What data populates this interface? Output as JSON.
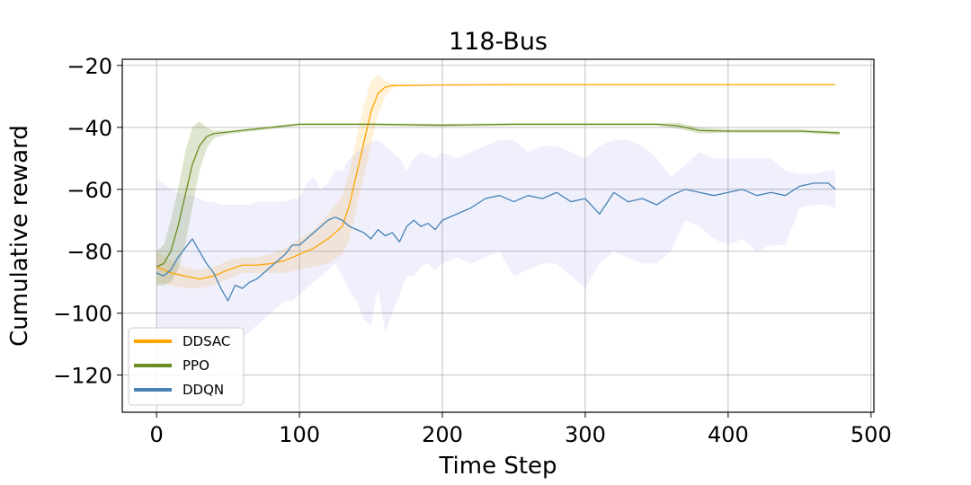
{
  "chart_data": {
    "type": "line",
    "title": "118-Bus",
    "xlabel": "Time Step",
    "ylabel": "Cumulative reward",
    "xlim": [
      -24,
      502
    ],
    "ylim": [
      -132,
      -18
    ],
    "xticks": [
      0,
      100,
      200,
      300,
      400,
      500
    ],
    "yticks": [
      -20,
      -40,
      -60,
      -80,
      -100,
      -120
    ],
    "xtick_labels": [
      "0",
      "100",
      "200",
      "300",
      "400",
      "500"
    ],
    "ytick_labels": [
      "−20",
      "−40",
      "−60",
      "−80",
      "−100",
      "−120"
    ],
    "grid": true,
    "legend_position": "lower-left",
    "series": [
      {
        "name": "DDSAC",
        "color": "#ffa500",
        "x": [
          0,
          10,
          20,
          30,
          40,
          50,
          60,
          70,
          80,
          90,
          100,
          110,
          120,
          130,
          135,
          140,
          145,
          150,
          155,
          160,
          165,
          170,
          200,
          250,
          300,
          350,
          400,
          450,
          475
        ],
        "y": [
          -85,
          -87,
          -88,
          -89,
          -88,
          -86,
          -84.5,
          -84.5,
          -84,
          -83,
          -81,
          -79,
          -76,
          -72,
          -65,
          -55,
          -45,
          -35,
          -29,
          -27,
          -26.5,
          -26.5,
          -26.3,
          -26.2,
          -26.2,
          -26.2,
          -26.2,
          -26.2,
          -26.2
        ],
        "band_upper": [
          -80,
          -83,
          -85,
          -86,
          -85,
          -83,
          -82,
          -82,
          -81,
          -79,
          -76,
          -73,
          -68,
          -62,
          -54,
          -43,
          -33,
          -25,
          -23,
          -25,
          -26,
          -26.2,
          -26.1,
          -26.0,
          -26.0,
          -26.0,
          -26.0,
          -26.0,
          -26.0
        ],
        "band_lower": [
          -90,
          -91,
          -92,
          -92,
          -91,
          -89,
          -87,
          -87,
          -87,
          -87,
          -86,
          -85,
          -84,
          -81,
          -76,
          -66,
          -56,
          -46,
          -36,
          -30,
          -27.5,
          -26.8,
          -26.5,
          -26.4,
          -26.4,
          -26.4,
          -26.4,
          -26.4,
          -26.4
        ]
      },
      {
        "name": "PPO",
        "color": "#6b8e23",
        "x": [
          0,
          5,
          10,
          15,
          20,
          25,
          30,
          35,
          40,
          50,
          60,
          80,
          100,
          120,
          150,
          200,
          250,
          300,
          350,
          365,
          380,
          400,
          450,
          478
        ],
        "y": [
          -85,
          -84,
          -80,
          -72,
          -62,
          -52,
          -46,
          -43,
          -42,
          -41.5,
          -41,
          -40,
          -39,
          -39,
          -39,
          -39.3,
          -39,
          -39,
          -39,
          -39.5,
          -41,
          -41.2,
          -41.2,
          -41.8
        ],
        "band_upper": [
          -80,
          -78,
          -70,
          -60,
          -48,
          -40,
          -38,
          -40,
          -41,
          -41,
          -40.5,
          -39.5,
          -38.6,
          -38.6,
          -38.6,
          -38.8,
          -38.6,
          -38.6,
          -38.6,
          -38.5,
          -40,
          -40.6,
          -40.6,
          -41.2
        ],
        "band_lower": [
          -91,
          -91,
          -90,
          -86,
          -78,
          -66,
          -54,
          -47,
          -43.5,
          -42.2,
          -41.6,
          -40.6,
          -39.4,
          -39.4,
          -39.4,
          -39.8,
          -39.4,
          -39.4,
          -39.4,
          -40.5,
          -42,
          -41.8,
          -41.8,
          -42.5
        ]
      },
      {
        "name": "DDQN",
        "color": "#4682b4",
        "x": [
          0,
          5,
          10,
          15,
          20,
          25,
          30,
          35,
          40,
          45,
          50,
          55,
          60,
          65,
          70,
          75,
          80,
          85,
          90,
          95,
          100,
          105,
          110,
          115,
          120,
          125,
          130,
          135,
          140,
          145,
          150,
          155,
          160,
          165,
          170,
          175,
          180,
          185,
          190,
          195,
          200,
          210,
          220,
          230,
          240,
          250,
          260,
          270,
          280,
          290,
          300,
          310,
          320,
          330,
          340,
          350,
          360,
          370,
          380,
          390,
          400,
          410,
          420,
          430,
          440,
          450,
          460,
          470,
          475
        ],
        "y": [
          -87,
          -88,
          -86,
          -82,
          -79,
          -76,
          -80,
          -84,
          -87,
          -92,
          -96,
          -91,
          -92,
          -90,
          -89,
          -87,
          -85,
          -83,
          -81,
          -78,
          -78,
          -76,
          -74,
          -72,
          -70,
          -69,
          -70,
          -72,
          -73,
          -74,
          -76,
          -73,
          -75,
          -74,
          -77,
          -72,
          -70,
          -72,
          -71,
          -73,
          -70,
          -68,
          -66,
          -63,
          -62,
          -64,
          -62,
          -63,
          -61,
          -64,
          -63,
          -68,
          -61,
          -64,
          -63,
          -65,
          -62,
          -60,
          -61,
          -62,
          -61,
          -60,
          -62,
          -61,
          -62,
          -59,
          -58,
          -58,
          -60
        ],
        "band_upper": [
          -57,
          -58,
          -60,
          -61,
          -62,
          -62,
          -63,
          -64,
          -64,
          -65,
          -65,
          -65,
          -65,
          -65,
          -64,
          -64,
          -64,
          -64,
          -64,
          -63,
          -63,
          -58,
          -56,
          -60,
          -58,
          -54,
          -54,
          -50,
          -48,
          -46,
          -45,
          -44,
          -46,
          -48,
          -50,
          -54,
          -50,
          -48,
          -49,
          -50,
          -48,
          -50,
          -48,
          -46,
          -44,
          -44,
          -48,
          -46,
          -46,
          -48,
          -50,
          -46,
          -44,
          -44,
          -46,
          -50,
          -56,
          -52,
          -48,
          -50,
          -50,
          -50,
          -50,
          -50,
          -54,
          -55,
          -55,
          -54,
          -54
        ],
        "band_lower": [
          -116,
          -118,
          -118,
          -117,
          -116,
          -114,
          -114,
          -113,
          -113,
          -112,
          -112,
          -110,
          -108,
          -106,
          -104,
          -102,
          -100,
          -98,
          -96,
          -96,
          -94,
          -92,
          -90,
          -88,
          -86,
          -84,
          -88,
          -93,
          -96,
          -102,
          -104,
          -92,
          -106,
          -100,
          -94,
          -88,
          -88,
          -85,
          -84,
          -86,
          -84,
          -82,
          -84,
          -82,
          -80,
          -88,
          -86,
          -84,
          -84,
          -88,
          -92,
          -84,
          -80,
          -82,
          -84,
          -84,
          -80,
          -70,
          -72,
          -76,
          -78,
          -76,
          -80,
          -78,
          -78,
          -66,
          -65,
          -65,
          -66
        ]
      }
    ]
  }
}
